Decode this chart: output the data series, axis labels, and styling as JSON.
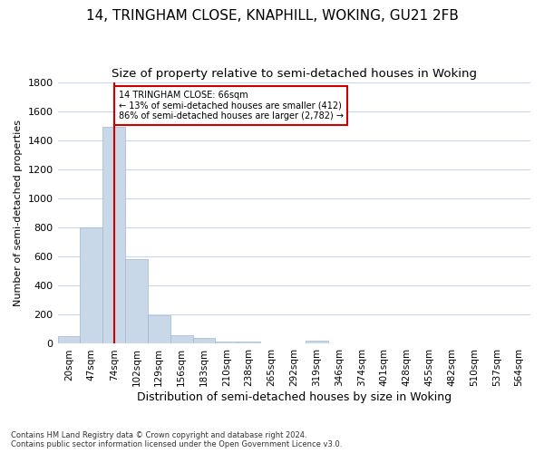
{
  "title_line1": "14, TRINGHAM CLOSE, KNAPHILL, WOKING, GU21 2FB",
  "title_line2": "Size of property relative to semi-detached houses in Woking",
  "xlabel": "Distribution of semi-detached houses by size in Woking",
  "ylabel": "Number of semi-detached properties",
  "footnote": "Contains HM Land Registry data © Crown copyright and database right 2024.\nContains public sector information licensed under the Open Government Licence v3.0.",
  "categories": [
    "20sqm",
    "47sqm",
    "74sqm",
    "102sqm",
    "129sqm",
    "156sqm",
    "183sqm",
    "210sqm",
    "238sqm",
    "265sqm",
    "292sqm",
    "319sqm",
    "346sqm",
    "374sqm",
    "401sqm",
    "428sqm",
    "455sqm",
    "482sqm",
    "510sqm",
    "537sqm",
    "564sqm"
  ],
  "values": [
    50,
    800,
    1490,
    580,
    193,
    60,
    38,
    18,
    14,
    0,
    0,
    22,
    0,
    0,
    0,
    0,
    0,
    0,
    0,
    0,
    0
  ],
  "bar_color": "#c8d8e8",
  "bar_edge_color": "#a0b8d0",
  "property_bin_index": 2,
  "vline_color": "#cc0000",
  "annotation_text": "14 TRINGHAM CLOSE: 66sqm\n← 13% of semi-detached houses are smaller (412)\n86% of semi-detached houses are larger (2,782) →",
  "annotation_box_color": "#cc0000",
  "annotation_bg_color": "#ffffff",
  "ylim": [
    0,
    1800
  ],
  "yticks": [
    0,
    200,
    400,
    600,
    800,
    1000,
    1200,
    1400,
    1600,
    1800
  ],
  "grid_color": "#c8d8f0",
  "background_color": "#ffffff",
  "title_fontsize": 11,
  "subtitle_fontsize": 9.5
}
